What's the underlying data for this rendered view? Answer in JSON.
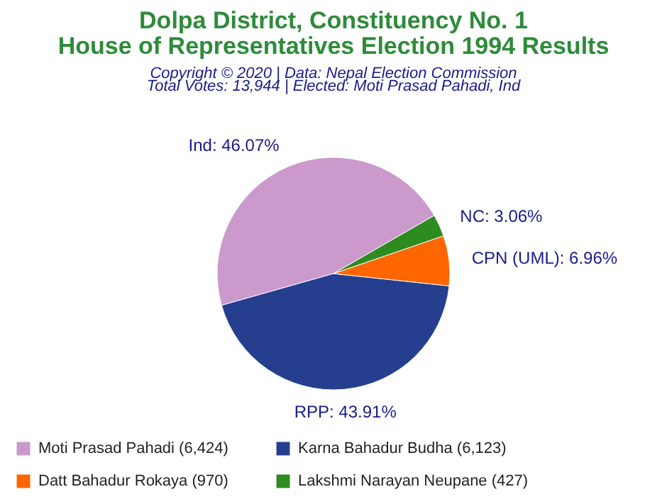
{
  "chart_data": {
    "type": "pie",
    "title": "Dolpa District, Constituency No. 1\nHouse of Representatives Election 1994 Results",
    "subtitle": "Copyright © 2020 | Data: Nepal Election Commission",
    "annotations": [
      "Total Votes: 13,944 | Elected: Moti Prasad Pahadi, Ind"
    ],
    "categories": [
      "Moti Prasad Pahadi (6,424)",
      "Karna Bahadur Budha (6,123)",
      "Datt Bahadur Rokaya (970)",
      "Lakshmi Narayan Neupane (427)"
    ],
    "values": [
      46.07,
      43.91,
      6.96,
      3.06
    ],
    "colors": [
      "#cc99cc",
      "#253f8e",
      "#ff6600",
      "#2e8b20"
    ],
    "value_labels": [
      "Ind: 46.07%",
      "RPP: 43.91%",
      "CPN (UML): 6.96%",
      "NC: 3.06%"
    ],
    "legend": "bottom"
  }
}
